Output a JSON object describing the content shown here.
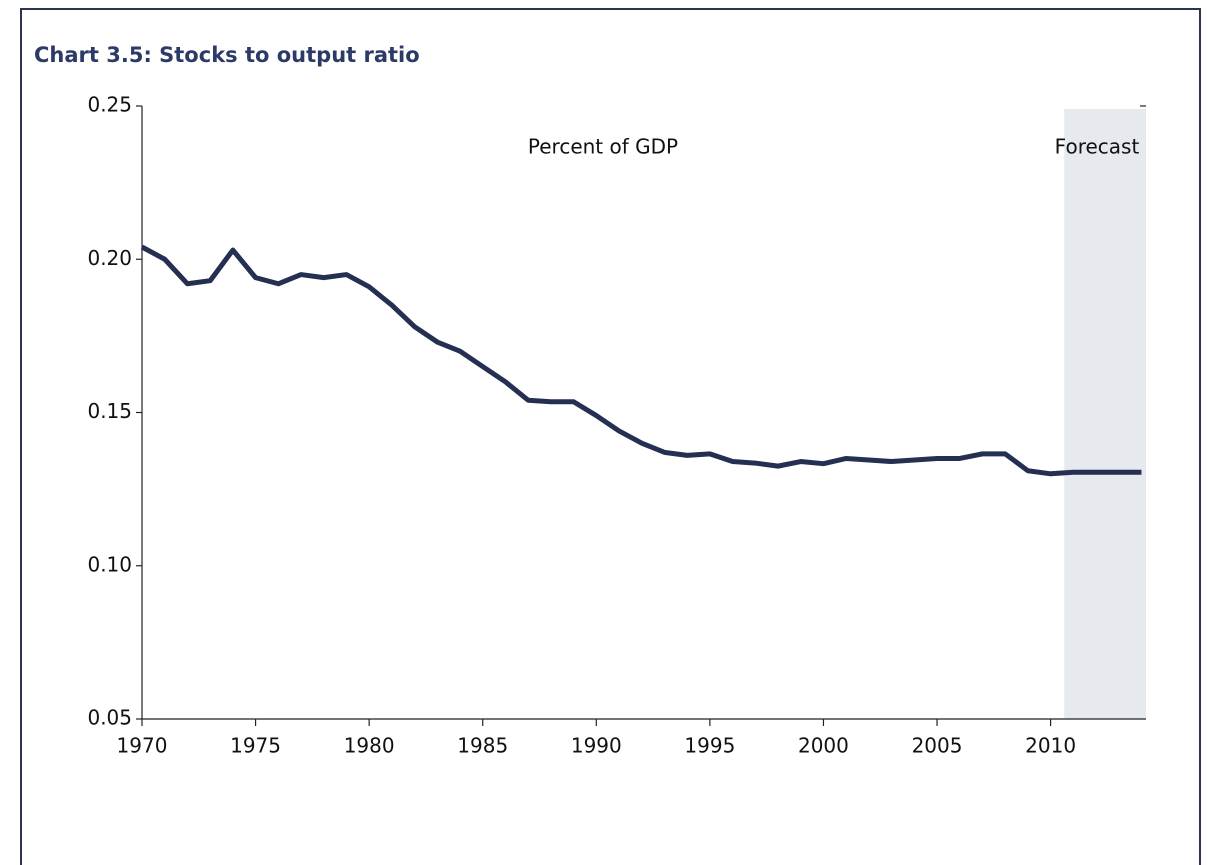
{
  "chart_data": {
    "type": "line",
    "title": "Chart 3.5: Stocks to output ratio",
    "annotations": [
      "Percent of GDP",
      "Forecast"
    ],
    "x": [
      1970,
      1971,
      1972,
      1973,
      1974,
      1975,
      1976,
      1977,
      1978,
      1979,
      1980,
      1981,
      1982,
      1983,
      1984,
      1985,
      1986,
      1987,
      1988,
      1989,
      1990,
      1991,
      1992,
      1993,
      1994,
      1995,
      1996,
      1997,
      1998,
      1999,
      2000,
      2001,
      2002,
      2003,
      2004,
      2005,
      2006,
      2007,
      2008,
      2009,
      2010,
      2011,
      2012,
      2013,
      2014
    ],
    "series": [
      {
        "color": "#252f52",
        "values": [
          0.204,
          0.2,
          0.192,
          0.193,
          0.203,
          0.194,
          0.192,
          0.195,
          0.194,
          0.195,
          0.191,
          0.185,
          0.178,
          0.173,
          0.17,
          0.165,
          0.16,
          0.154,
          0.1535,
          0.1535,
          0.149,
          0.144,
          0.14,
          0.137,
          0.136,
          0.1365,
          0.134,
          0.1335,
          0.1325,
          0.134,
          0.1333,
          0.135,
          0.1345,
          0.134,
          0.1345,
          0.135,
          0.135,
          0.1365,
          0.1365,
          0.131,
          0.13,
          0.1305,
          0.1305,
          0.1305,
          0.1305
        ]
      }
    ],
    "forecast_span": [
      2010.6,
      2014.2
    ],
    "forecast_color": "#e6eaee",
    "xlim": [
      1970,
      2014.2
    ],
    "xticks": [
      1970,
      1975,
      1980,
      1985,
      1990,
      1995,
      2000,
      2005,
      2010
    ],
    "ylim": [
      0.05,
      0.25
    ],
    "yticks": [
      0.05,
      {
        "value": 0.1,
        "label": "0.10"
      },
      0.15,
      {
        "value": 0.2,
        "label": "0.20"
      },
      0.25
    ]
  }
}
